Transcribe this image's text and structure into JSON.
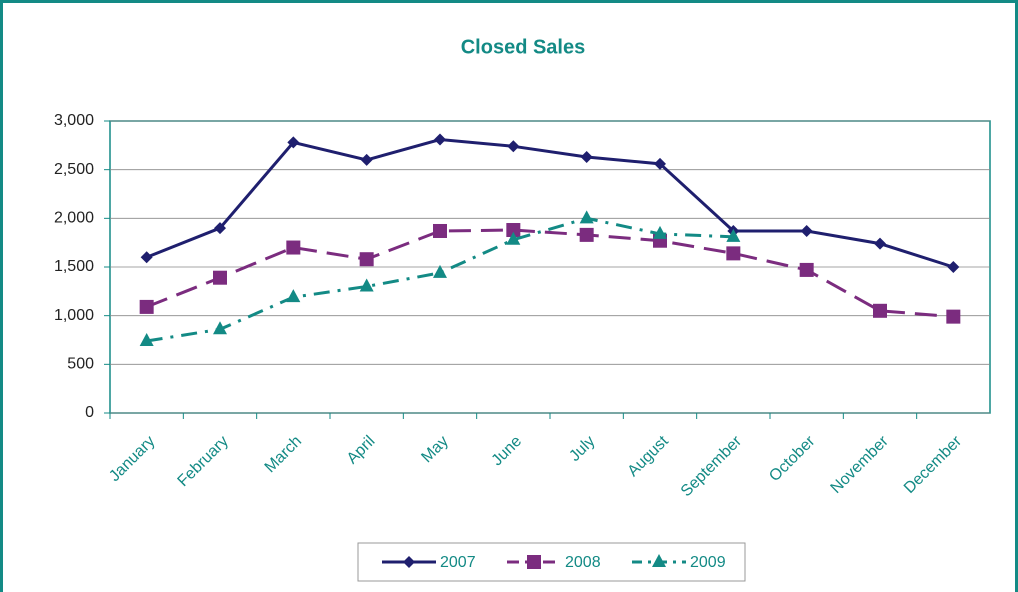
{
  "chart_data": {
    "type": "line",
    "title": "Closed Sales",
    "categories": [
      "January",
      "February",
      "March",
      "April",
      "May",
      "June",
      "July",
      "August",
      "September",
      "October",
      "November",
      "December"
    ],
    "series": [
      {
        "name": "2007",
        "color": "#1f1f6e",
        "marker": "diamond",
        "dash": "solid",
        "values": [
          1600,
          1900,
          2780,
          2600,
          2810,
          2740,
          2630,
          2560,
          1870,
          1870,
          1740,
          1500
        ]
      },
      {
        "name": "2008",
        "color": "#7b2c7f",
        "marker": "square",
        "dash": "dashed",
        "values": [
          1090,
          1390,
          1700,
          1580,
          1870,
          1880,
          1830,
          1770,
          1640,
          1470,
          1050,
          990
        ]
      },
      {
        "name": "2009",
        "color": "#138a85",
        "marker": "triangle",
        "dash": "dashdot",
        "values": [
          740,
          860,
          1190,
          1300,
          1440,
          1780,
          2000,
          1840,
          1810,
          null,
          null,
          null
        ]
      }
    ],
    "ylim": [
      0,
      3000
    ],
    "yticks": [
      0,
      500,
      {
        "value": 1000,
        "label": "1,000"
      },
      {
        "value": 1500,
        "label": "1,500"
      },
      {
        "value": 2000,
        "label": "2,000"
      },
      {
        "value": 2500,
        "label": "2,500"
      },
      {
        "value": 3000,
        "label": "3,000"
      }
    ],
    "grid": true,
    "legend": "bottom"
  }
}
